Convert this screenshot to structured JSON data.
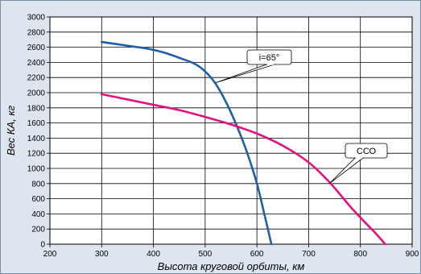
{
  "chart_data": {
    "type": "line",
    "xlabel": "Высота круговой орбиты, км",
    "ylabel": "Вес КА, кг",
    "xlim": [
      200,
      900
    ],
    "ylim": [
      0,
      3000
    ],
    "x_ticks": [
      200,
      300,
      400,
      500,
      600,
      700,
      800,
      900
    ],
    "y_ticks": [
      0,
      200,
      400,
      600,
      800,
      1000,
      1200,
      1400,
      1600,
      1800,
      2000,
      2200,
      2400,
      2600,
      2800,
      3000
    ],
    "grid": true,
    "series": [
      {
        "name": "i=65°",
        "color": "#1f5fa8",
        "x": [
          300,
          330,
          360,
          390,
          420,
          450,
          480,
          500,
          520,
          540,
          560,
          580,
          600,
          615,
          628
        ],
        "y": [
          2670,
          2640,
          2610,
          2580,
          2530,
          2460,
          2380,
          2280,
          2120,
          1880,
          1580,
          1230,
          800,
          380,
          0
        ]
      },
      {
        "name": "ССО",
        "color": "#e0137f",
        "x": [
          300,
          350,
          400,
          450,
          500,
          550,
          600,
          650,
          700,
          740,
          780,
          810,
          830,
          848
        ],
        "y": [
          1980,
          1910,
          1840,
          1770,
          1680,
          1580,
          1460,
          1300,
          1080,
          820,
          500,
          280,
          140,
          0
        ]
      }
    ],
    "annotations": [
      {
        "text": "i=65°",
        "target_x": 520,
        "target_y": 2130
      },
      {
        "text": "ССО",
        "target_x": 740,
        "target_y": 800
      }
    ]
  }
}
